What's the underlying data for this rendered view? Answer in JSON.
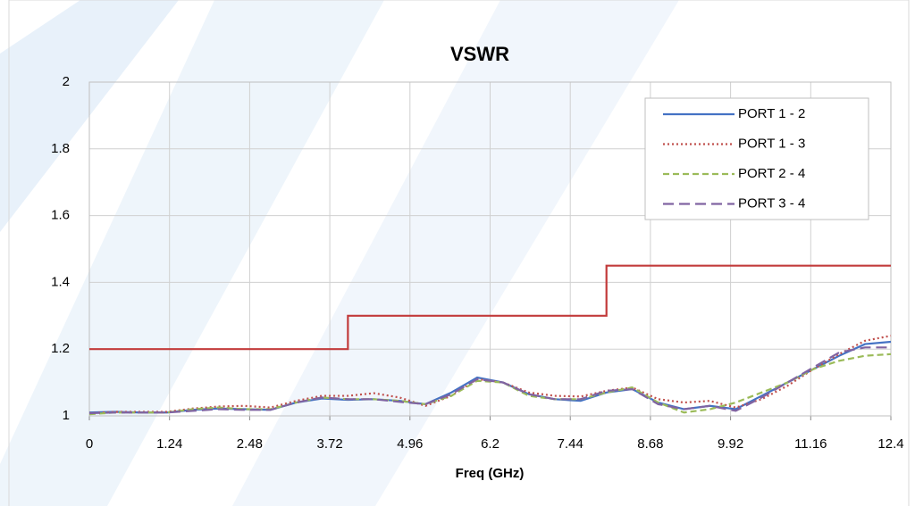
{
  "chart_data": {
    "type": "line",
    "title": "VSWR",
    "x_label": "Freq (GHz)",
    "xlim": [
      0,
      12.4
    ],
    "xticks": [
      0,
      1.24,
      2.48,
      3.72,
      4.96,
      6.2,
      7.44,
      8.68,
      9.92,
      11.16,
      12.4
    ],
    "ylim": [
      1,
      2
    ],
    "yticks": [
      1,
      1.2,
      1.4,
      1.6,
      1.8,
      2
    ],
    "grid": true,
    "legend": "upper right",
    "x": [
      0,
      0.4,
      0.8,
      1.2,
      1.6,
      2.0,
      2.4,
      2.8,
      3.2,
      3.6,
      4.0,
      4.4,
      4.8,
      5.2,
      5.6,
      6.0,
      6.4,
      6.8,
      7.2,
      7.6,
      8.0,
      8.4,
      8.8,
      9.2,
      9.6,
      10.0,
      10.4,
      10.8,
      11.2,
      11.6,
      12.0,
      12.4
    ],
    "series": [
      {
        "name": "PORT 1 - 2",
        "color": "#4472c4",
        "dash": "solid",
        "values": [
          1.01,
          1.012,
          1.01,
          1.01,
          1.018,
          1.022,
          1.02,
          1.018,
          1.04,
          1.052,
          1.048,
          1.05,
          1.045,
          1.035,
          1.07,
          1.115,
          1.1,
          1.065,
          1.05,
          1.045,
          1.07,
          1.08,
          1.04,
          1.02,
          1.03,
          1.02,
          1.06,
          1.1,
          1.14,
          1.18,
          1.215,
          1.222
        ]
      },
      {
        "name": "PORT 1 - 3",
        "color": "#c0504d",
        "dash": "dotted",
        "values": [
          1.008,
          1.012,
          1.012,
          1.012,
          1.022,
          1.028,
          1.03,
          1.025,
          1.045,
          1.06,
          1.06,
          1.068,
          1.055,
          1.03,
          1.06,
          1.11,
          1.1,
          1.07,
          1.06,
          1.058,
          1.075,
          1.085,
          1.05,
          1.04,
          1.045,
          1.025,
          1.05,
          1.09,
          1.14,
          1.185,
          1.225,
          1.24
        ]
      },
      {
        "name": "PORT 2 - 4",
        "color": "#9bbb59",
        "dash": "dashed",
        "values": [
          1.005,
          1.01,
          1.01,
          1.01,
          1.02,
          1.025,
          1.02,
          1.02,
          1.04,
          1.055,
          1.05,
          1.05,
          1.045,
          1.035,
          1.06,
          1.105,
          1.1,
          1.06,
          1.05,
          1.05,
          1.07,
          1.085,
          1.04,
          1.01,
          1.02,
          1.04,
          1.07,
          1.1,
          1.14,
          1.165,
          1.18,
          1.185
        ]
      },
      {
        "name": "PORT 3 - 4",
        "color": "#8064a2",
        "dash": "longdash",
        "values": [
          1.008,
          1.01,
          1.01,
          1.01,
          1.015,
          1.02,
          1.018,
          1.018,
          1.04,
          1.055,
          1.05,
          1.05,
          1.042,
          1.035,
          1.065,
          1.11,
          1.1,
          1.065,
          1.05,
          1.05,
          1.075,
          1.08,
          1.035,
          1.02,
          1.03,
          1.015,
          1.055,
          1.1,
          1.145,
          1.19,
          1.205,
          1.205
        ]
      }
    ],
    "limit_line": {
      "color": "#c23b3b",
      "x": [
        0,
        4.0,
        4.0,
        8.0,
        8.0,
        12.4
      ],
      "values": [
        1.2,
        1.2,
        1.3,
        1.3,
        1.45,
        1.45
      ]
    }
  }
}
